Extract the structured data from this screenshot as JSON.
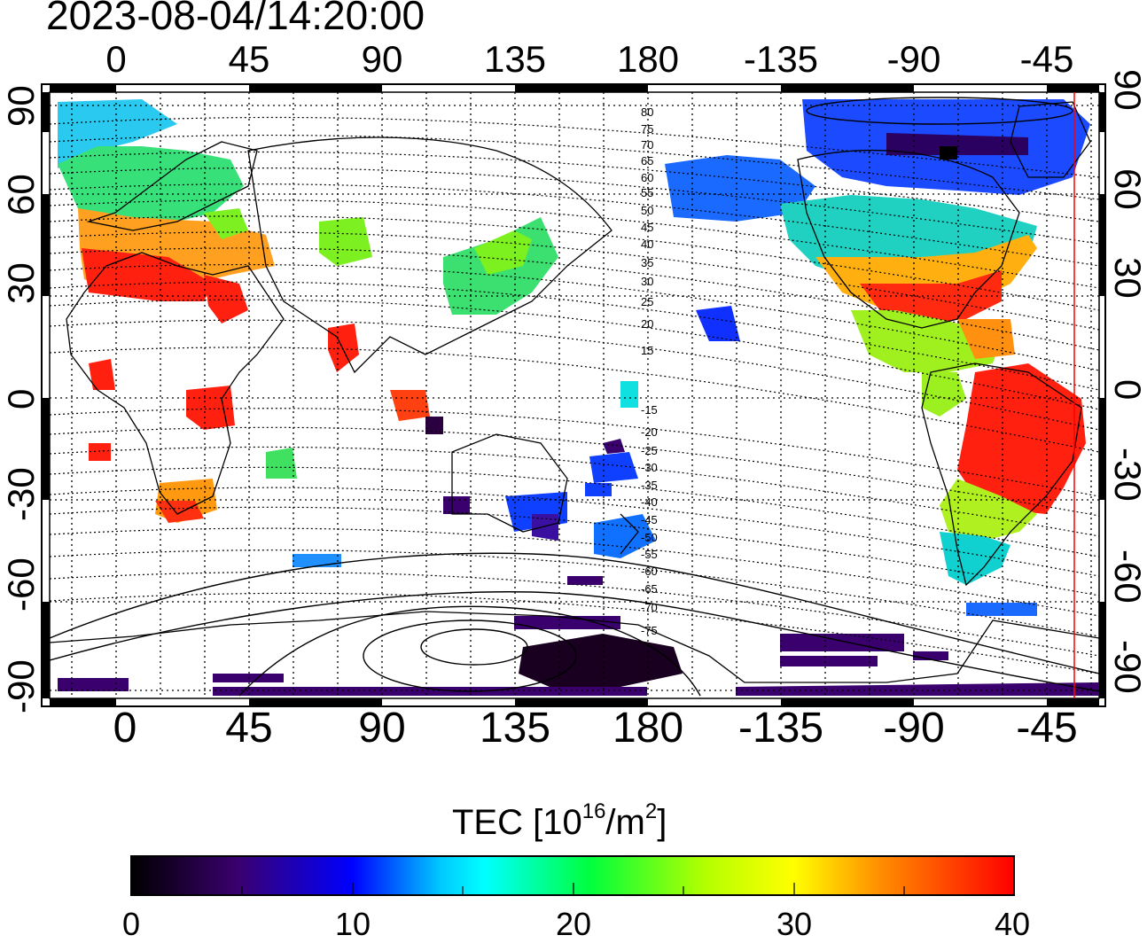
{
  "title": "2023-08-04/14:20:00",
  "map": {
    "top_lon_labels": [
      "0",
      "45",
      "90",
      "135",
      "180",
      "-135",
      "-90",
      "-45"
    ],
    "bottom_lon_labels": [
      "0",
      "45",
      "90",
      "135",
      "180",
      "-135",
      "-90",
      "-45"
    ],
    "left_lat_labels": [
      "90",
      "60",
      "30",
      "0",
      "-30",
      "-60",
      "-90"
    ],
    "right_lat_labels": [
      "90",
      "60",
      "30",
      "0",
      "-30",
      "-60",
      "-90"
    ],
    "magnetic_latitude_labels": [
      "80",
      "75",
      "70",
      "65",
      "60",
      "55",
      "50",
      "45",
      "40",
      "35",
      "30",
      "25",
      "20",
      "15",
      "-15",
      "-20",
      "-25",
      "-30",
      "-35",
      "-40",
      "-45",
      "-50",
      "-55",
      "-60",
      "-65",
      "-70",
      "-75"
    ],
    "terminator_color": "#ff0000"
  },
  "colorbar": {
    "title_main": "TEC  [10",
    "title_exp": "16",
    "title_unit": "/m",
    "title_unit_exp": "2",
    "title_close": "]",
    "labels": [
      "0",
      "10",
      "20",
      "30",
      "40"
    ],
    "min": 0,
    "max": 40,
    "stops": [
      "#000000",
      "#3a006e",
      "#0000ff",
      "#00c8ff",
      "#00ffff",
      "#00ff3c",
      "#b4ff00",
      "#ffff00",
      "#ff8c00",
      "#ff0000"
    ]
  }
}
